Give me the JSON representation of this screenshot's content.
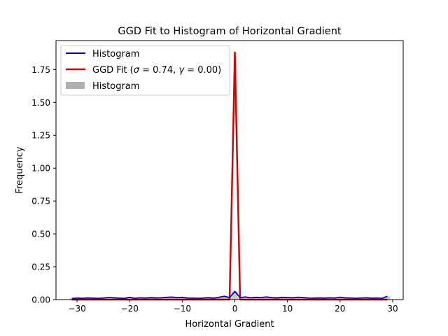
{
  "chart_data": {
    "type": "line",
    "title": "GGD Fit to Histogram of Horizontal Gradient",
    "xlabel": "Horizontal Gradient",
    "ylabel": "Frequency",
    "xlim": [
      -34.0,
      32.0
    ],
    "ylim": [
      0.0,
      1.97
    ],
    "xticks": [
      -30,
      -20,
      -10,
      0,
      10,
      20,
      30
    ],
    "xtick_labels": [
      "−30",
      "−20",
      "−10",
      "0",
      "10",
      "20",
      "30"
    ],
    "yticks": [
      0.0,
      0.25,
      0.5,
      0.75,
      1.0,
      1.25,
      1.5,
      1.75
    ],
    "ytick_labels": [
      "0.00",
      "0.25",
      "0.50",
      "0.75",
      "1.00",
      "1.25",
      "1.50",
      "1.75"
    ],
    "grid": false,
    "legend_position": "top-left",
    "legend": {
      "entries": [
        {
          "label": "Histogram",
          "kind": "line",
          "color": "#0000cc"
        },
        {
          "label_prefix": "GGD Fit (",
          "sigma_symbol": "σ",
          "sigma_value": " = 0.74, ",
          "gamma_symbol": "γ",
          "gamma_value": " = 0.00)",
          "kind": "line",
          "color": "#dd0000"
        },
        {
          "label": "Histogram",
          "kind": "patch",
          "color": "#b0b0b0"
        }
      ]
    },
    "series": [
      {
        "name": "Histogram",
        "kind": "line",
        "color": "#0000cc",
        "x": [
          -31,
          -30,
          -29,
          -28,
          -27,
          -26,
          -25,
          -24,
          -23,
          -22,
          -21,
          -20,
          -19,
          -18,
          -17,
          -16,
          -15,
          -14,
          -13,
          -12,
          -11,
          -10,
          -9,
          -8,
          -7,
          -6,
          -5,
          -4,
          -3,
          -2,
          -1,
          0,
          1,
          2,
          3,
          4,
          5,
          6,
          7,
          8,
          9,
          10,
          11,
          12,
          13,
          14,
          15,
          16,
          17,
          18,
          19,
          20,
          21,
          22,
          23,
          24,
          25,
          26,
          27,
          28,
          29
        ],
        "y": [
          0.008,
          0.012,
          0.01,
          0.013,
          0.011,
          0.009,
          0.012,
          0.016,
          0.014,
          0.011,
          0.009,
          0.017,
          0.01,
          0.014,
          0.012,
          0.015,
          0.013,
          0.014,
          0.017,
          0.019,
          0.015,
          0.017,
          0.012,
          0.011,
          0.01,
          0.012,
          0.015,
          0.011,
          0.018,
          0.025,
          0.015,
          0.062,
          0.015,
          0.02,
          0.014,
          0.017,
          0.016,
          0.02,
          0.015,
          0.013,
          0.017,
          0.016,
          0.014,
          0.018,
          0.015,
          0.012,
          0.011,
          0.013,
          0.011,
          0.014,
          0.012,
          0.018,
          0.013,
          0.012,
          0.01,
          0.012,
          0.014,
          0.011,
          0.012,
          0.01,
          0.025
        ]
      },
      {
        "name": "GGD Fit (σ = 0.74, γ = 0.00)",
        "kind": "line",
        "color": "#dd0000",
        "x": [
          -31,
          -30,
          -29,
          -28,
          -27,
          -26,
          -25,
          -24,
          -23,
          -22,
          -21,
          -20,
          -19,
          -18,
          -17,
          -16,
          -15,
          -14,
          -13,
          -12,
          -11,
          -10,
          -9,
          -8,
          -7,
          -6,
          -5,
          -4,
          -3,
          -2,
          -1,
          0,
          1,
          2,
          3,
          4,
          5,
          6,
          7,
          8,
          9,
          10,
          11,
          12,
          13,
          14,
          15,
          16,
          17,
          18,
          19,
          20,
          21,
          22,
          23,
          24,
          25,
          26,
          27,
          28,
          29
        ],
        "y": [
          0,
          0,
          0,
          0,
          0,
          0,
          0,
          0,
          0,
          0,
          0,
          0,
          0,
          0,
          0,
          0,
          0,
          0,
          0,
          0,
          0,
          0,
          0,
          0,
          0,
          0,
          0,
          0,
          0,
          0,
          0,
          1.88,
          0,
          0,
          0,
          0,
          0,
          0,
          0,
          0,
          0,
          0,
          0,
          0,
          0,
          0,
          0,
          0,
          0,
          0,
          0,
          0,
          0,
          0,
          0,
          0,
          0,
          0,
          0,
          0,
          0
        ]
      },
      {
        "name": "Histogram",
        "kind": "bars",
        "color": "#b0b0b0",
        "x": [
          -31,
          -30,
          -29,
          -28,
          -27,
          -26,
          -25,
          -24,
          -23,
          -22,
          -21,
          -20,
          -19,
          -18,
          -17,
          -16,
          -15,
          -14,
          -13,
          -12,
          -11,
          -10,
          -9,
          -8,
          -7,
          -6,
          -5,
          -4,
          -3,
          -2,
          -1,
          0,
          1,
          2,
          3,
          4,
          5,
          6,
          7,
          8,
          9,
          10,
          11,
          12,
          13,
          14,
          15,
          16,
          17,
          18,
          19,
          20,
          21,
          22,
          23,
          24,
          25,
          26,
          27,
          28,
          29
        ],
        "y": [
          0.008,
          0.012,
          0.01,
          0.013,
          0.011,
          0.009,
          0.012,
          0.016,
          0.014,
          0.011,
          0.009,
          0.017,
          0.01,
          0.014,
          0.012,
          0.015,
          0.013,
          0.014,
          0.017,
          0.019,
          0.015,
          0.017,
          0.012,
          0.011,
          0.01,
          0.012,
          0.015,
          0.011,
          0.018,
          0.025,
          0.015,
          0.062,
          0.015,
          0.02,
          0.014,
          0.017,
          0.016,
          0.02,
          0.015,
          0.013,
          0.017,
          0.016,
          0.014,
          0.018,
          0.015,
          0.012,
          0.011,
          0.013,
          0.011,
          0.014,
          0.012,
          0.018,
          0.013,
          0.012,
          0.01,
          0.012,
          0.014,
          0.011,
          0.012,
          0.01,
          0.025
        ]
      }
    ]
  }
}
